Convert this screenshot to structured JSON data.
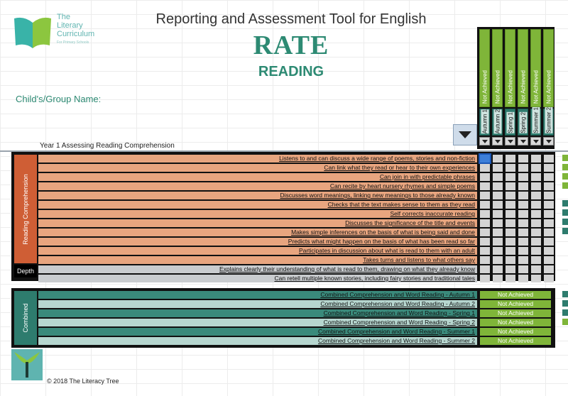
{
  "header": {
    "logo_line1": "The",
    "logo_line2": "Literary",
    "logo_line3": "Curriculum",
    "logo_tagline": "For Primary Schools",
    "title": "Reporting and Assessment Tool for English",
    "rate": "RATE",
    "subject": "READING",
    "child_label": "Child's/Group Name:",
    "section_label": "Year 1 Assessing Reading Comprehension"
  },
  "terms": [
    "Autumn 1",
    "Autumn 2",
    "Spring 1",
    "Spring 2",
    "Summer 1",
    "Summer 2"
  ],
  "status_labels": [
    "Not Achieved",
    "Not Achieved",
    "Not Achieved",
    "Not Achieved",
    "Not Achieved",
    "Not Achieved"
  ],
  "reading_comprehension": {
    "side_label": "Reading Comprehension",
    "depth_label": "Depth",
    "statements": [
      "Listens to and can discuss a wide range of poems, stories and non-fiction",
      "Can link what they read or hear to their own experiences",
      "Can join in with predictable phrases",
      "Can recite by heart nursery rhymes and simple poems",
      "Discusses word meanings, linking new meanings to those already known",
      "Checks that the text makes sense to them as they read",
      "Self corrects inaccurate reading",
      "Discusses the significance of the title and events",
      "Makes simple inferences on the basis of what is being said and done",
      "Predicts what might happen on the basis of what has been read so far",
      "Participates in discussion about what is read to them with an adult",
      "Takes turns and listens to what others say"
    ],
    "depth_statements": [
      "Explains clearly their understanding of what is read to them, drawing on what they already know",
      "Can retell multiple known stories, including fairy stories and traditional tales"
    ]
  },
  "combined": {
    "side_label": "Combined",
    "rows": [
      {
        "label": "Combined Comprehension and Word Reading - Autumn 1",
        "status": "Not Achieved"
      },
      {
        "label": "Combined Comprehension and Word Reading - Autumn 2",
        "status": "Not Achieved"
      },
      {
        "label": "Combined Comprehension and Word Reading - Spring 1",
        "status": "Not Achieved"
      },
      {
        "label": "Combined Comprehension and Word Reading - Spring 2",
        "status": "Not Achieved"
      },
      {
        "label": "Combined Comprehension and Word Reading - Summer 1",
        "status": "Not Achieved"
      },
      {
        "label": "Combined Comprehension and Word Reading - Summer 2",
        "status": "Not Achieved"
      }
    ]
  },
  "footer": {
    "copyright": "© 2018 The Literacy Tree"
  },
  "colors": {
    "brand_green": "#2d8a73",
    "status_green": "#7fb539",
    "orange": "#cf5e35",
    "teal": "#2e7c6e"
  },
  "icons": {
    "logo": "open-book-icon",
    "bottom_logo": "tree-icon",
    "dropdown": "dropdown-arrow-icon"
  }
}
